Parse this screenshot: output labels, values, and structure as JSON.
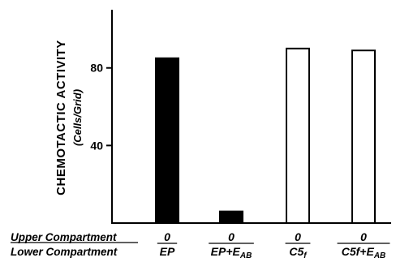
{
  "chart_data": {
    "type": "bar",
    "ylabel": "CHEMOTACTIC ACTIVITY",
    "ylabel_sub": "(Cells/Grid)",
    "ylim": [
      0,
      110
    ],
    "yticks": [
      "40",
      "80"
    ],
    "grid": false,
    "rows": {
      "upper_label": "Upper Compartment",
      "lower_label": "Lower Compartment"
    },
    "categories": [
      {
        "upper": "0",
        "lower": "EP",
        "lower_sub": ""
      },
      {
        "upper": "0",
        "lower": "EP+E",
        "lower_sub": "AB"
      },
      {
        "upper": "0",
        "lower": "C5",
        "lower_sub": "f"
      },
      {
        "upper": "0",
        "lower": "C5f+E",
        "lower_sub": "AB"
      }
    ],
    "values": [
      85,
      6,
      90,
      89
    ],
    "fills": [
      "#000000",
      "#000000",
      "#ffffff",
      "#ffffff"
    ]
  }
}
